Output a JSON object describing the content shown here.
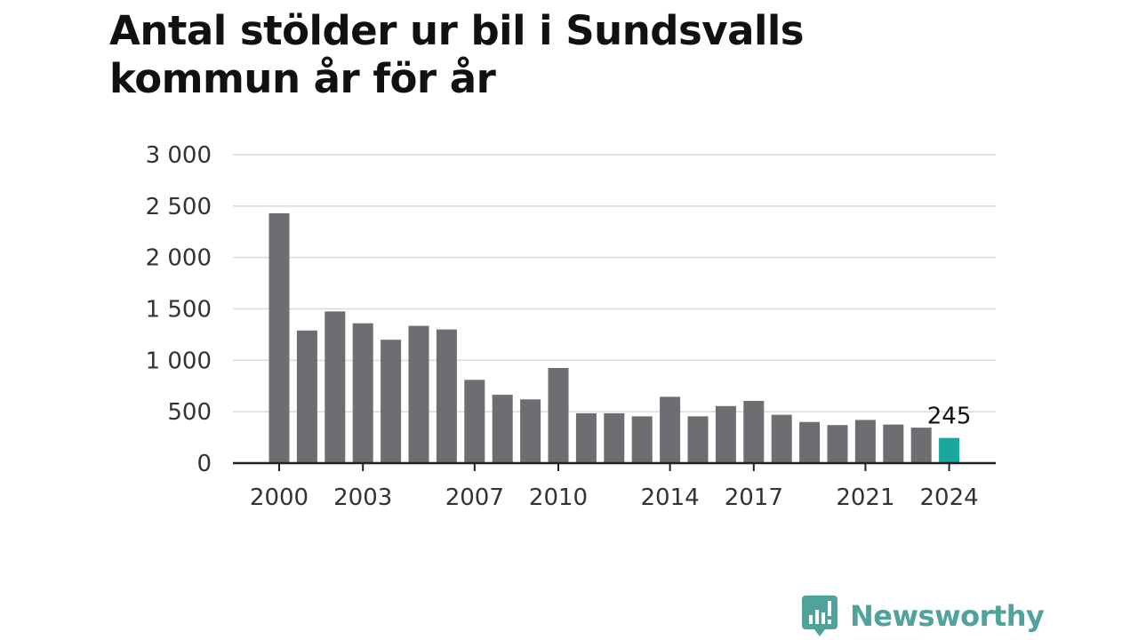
{
  "title_lines": [
    "Antal stölder ur bil i Sundsvalls",
    "kommun år för år"
  ],
  "brand": {
    "name": "Newsworthy"
  },
  "colors": {
    "bar": "#6e6d72",
    "highlight": "#1aa79c",
    "grid": "#d9d9d9",
    "axis": "#222222",
    "brand": "#4fa39b"
  },
  "chart_data": {
    "type": "bar",
    "title": "Antal stölder ur bil i Sundsvalls kommun år för år",
    "xlabel": "",
    "ylabel": "",
    "categories": [
      "2000",
      "2001",
      "2002",
      "2003",
      "2004",
      "2005",
      "2006",
      "2007",
      "2008",
      "2009",
      "2010",
      "2011",
      "2012",
      "2013",
      "2014",
      "2015",
      "2016",
      "2017",
      "2018",
      "2019",
      "2020",
      "2021",
      "2022",
      "2023",
      "2024"
    ],
    "values": [
      2430,
      1290,
      1475,
      1360,
      1200,
      1335,
      1300,
      810,
      665,
      620,
      925,
      485,
      485,
      455,
      645,
      455,
      555,
      605,
      470,
      400,
      370,
      420,
      375,
      345,
      245
    ],
    "x_tick_labels": [
      "2000",
      "2003",
      "2007",
      "2010",
      "2014",
      "2017",
      "2021",
      "2024"
    ],
    "ylim": [
      0,
      3000
    ],
    "y_ticks": [
      0,
      500,
      1000,
      1500,
      2000,
      2500,
      3000
    ],
    "y_tick_labels": [
      "0",
      "500",
      "1 000",
      "1 500",
      "2 000",
      "2 500",
      "3 000"
    ],
    "grid": true,
    "highlight_category": "2024",
    "annotation": {
      "category": "2024",
      "text": "245"
    }
  }
}
